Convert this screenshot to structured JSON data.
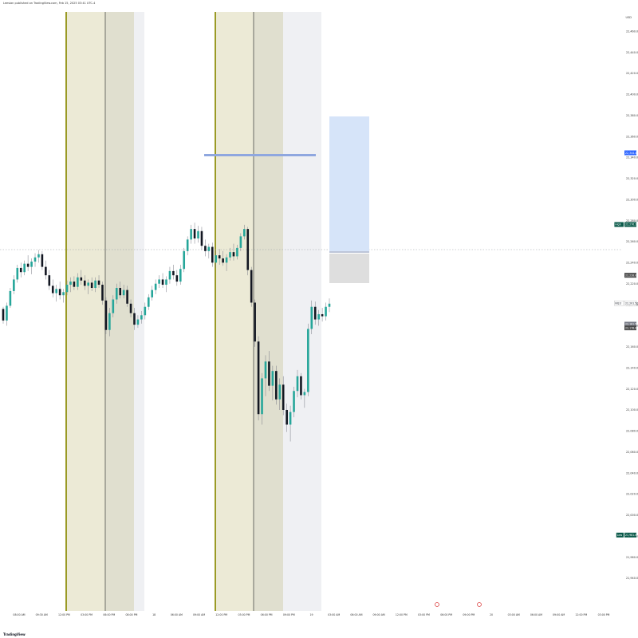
{
  "header": {
    "publisher": "Leesian published on TradingView.com, Feb 15, 2025 03:41 UTC-4"
  },
  "footer": {
    "brand": "TradingView"
  },
  "currency": "USD",
  "chart_data": {
    "type": "candlestick",
    "title": "",
    "ylim": [
      21940,
      22470
    ],
    "price_ticks": [
      22460,
      22440,
      22420,
      22400,
      22380,
      22360,
      22340,
      22320,
      22300,
      22280,
      22260,
      22240,
      22220,
      22200,
      22180,
      22160,
      22140,
      22120,
      22100,
      22080,
      22060,
      22040,
      22020,
      22000,
      21980,
      21960,
      21940
    ],
    "time_labels": [
      "08:00 AM",
      "09:30 AM",
      "12:00 PM",
      "03:00 PM",
      "06:00 PM",
      "08:00 PM",
      "18",
      "06:00 AM",
      "09:00 AM",
      "12:00 PM",
      "03:00 PM",
      "06:00 PM",
      "09:00 PM",
      "19",
      "03:00 AM",
      "06:00 AM",
      "09:00 AM",
      "12:00 PM",
      "03:00 PM",
      "06:00 PM",
      "09:00 PM",
      "20",
      "03:00 AM",
      "06:00 AM",
      "09:00 AM",
      "12:00 PM",
      "03:00 PM"
    ],
    "price_labels": [
      {
        "label": "",
        "value": "22,344.45",
        "color": "#2962ff"
      },
      {
        "label": "High",
        "value": "22,276.25",
        "color": "#0b5a4a"
      },
      {
        "label": "",
        "value": "22,228.00",
        "color": "#4a4a4a"
      },
      {
        "label": "NQ1!",
        "value": "22,201.50",
        "color": "#ffffff"
      },
      {
        "label": "",
        "value": "22,181.50",
        "color": "#787b86"
      },
      {
        "label": "",
        "value": "22,178.00",
        "color": "#4a4a4a"
      },
      {
        "label": "Low",
        "value": "21,981.00",
        "color": "#0b5a4a"
      }
    ],
    "candles": [
      [
        22196,
        22198,
        22182,
        22185
      ],
      [
        22185,
        22202,
        22180,
        22199
      ],
      [
        22199,
        22216,
        22197,
        22213
      ],
      [
        22213,
        22228,
        22210,
        22224
      ],
      [
        22224,
        22238,
        22221,
        22235
      ],
      [
        22235,
        22240,
        22226,
        22231
      ],
      [
        22231,
        22242,
        22228,
        22239
      ],
      [
        22239,
        22247,
        22232,
        22236
      ],
      [
        22236,
        22244,
        22229,
        22241
      ],
      [
        22241,
        22249,
        22236,
        22245
      ],
      [
        22245,
        22252,
        22240,
        22248
      ],
      [
        22248,
        22251,
        22233,
        22236
      ],
      [
        22236,
        22242,
        22224,
        22228
      ],
      [
        22228,
        22233,
        22214,
        22218
      ],
      [
        22218,
        22224,
        22207,
        22211
      ],
      [
        22211,
        22219,
        22203,
        22215
      ],
      [
        22215,
        22222,
        22205,
        22209
      ],
      [
        22209,
        22215,
        22202,
        22212
      ],
      [
        22212,
        22223,
        22209,
        22219
      ],
      [
        22219,
        22226,
        22212,
        22222
      ],
      [
        22222,
        22227,
        22214,
        22217
      ],
      [
        22217,
        22230,
        22214,
        22226
      ],
      [
        22226,
        22233,
        22219,
        22223
      ],
      [
        22223,
        22228,
        22214,
        22218
      ],
      [
        22218,
        22224,
        22210,
        22221
      ],
      [
        22221,
        22226,
        22213,
        22216
      ],
      [
        22216,
        22226,
        22212,
        22223
      ],
      [
        22223,
        22228,
        22216,
        22219
      ],
      [
        22219,
        22222,
        22200,
        22204
      ],
      [
        22204,
        22207,
        22172,
        22176
      ],
      [
        22176,
        22197,
        22170,
        22192
      ],
      [
        22192,
        22209,
        22188,
        22205
      ],
      [
        22205,
        22220,
        22201,
        22216
      ],
      [
        22216,
        22222,
        22206,
        22209
      ],
      [
        22209,
        22219,
        22206,
        22214
      ],
      [
        22214,
        22218,
        22198,
        22201
      ],
      [
        22201,
        22205,
        22188,
        22192
      ],
      [
        22192,
        22197,
        22176,
        22181
      ],
      [
        22181,
        22190,
        22178,
        22186
      ],
      [
        22186,
        22194,
        22182,
        22190
      ],
      [
        22190,
        22202,
        22186,
        22198
      ],
      [
        22198,
        22210,
        22195,
        22207
      ],
      [
        22207,
        22218,
        22204,
        22214
      ],
      [
        22214,
        22224,
        22210,
        22220
      ],
      [
        22220,
        22228,
        22216,
        22224
      ],
      [
        22224,
        22230,
        22216,
        22219
      ],
      [
        22219,
        22227,
        22212,
        22224
      ],
      [
        22224,
        22236,
        22220,
        22232
      ],
      [
        22232,
        22238,
        22224,
        22228
      ],
      [
        22228,
        22233,
        22218,
        22222
      ],
      [
        22222,
        22238,
        22219,
        22234
      ],
      [
        22234,
        22254,
        22231,
        22251
      ],
      [
        22251,
        22265,
        22247,
        22262
      ],
      [
        22262,
        22276,
        22258,
        22272
      ],
      [
        22272,
        22278,
        22258,
        22263
      ],
      [
        22263,
        22275,
        22259,
        22270
      ],
      [
        22270,
        22274,
        22252,
        22256
      ],
      [
        22256,
        22262,
        22246,
        22251
      ],
      [
        22251,
        22258,
        22244,
        22255
      ],
      [
        22255,
        22259,
        22236,
        22240
      ],
      [
        22240,
        22252,
        22235,
        22247
      ],
      [
        22247,
        22253,
        22238,
        22244
      ],
      [
        22244,
        22251,
        22237,
        22240
      ],
      [
        22240,
        22248,
        22232,
        22245
      ],
      [
        22245,
        22254,
        22242,
        22250
      ],
      [
        22250,
        22258,
        22242,
        22246
      ],
      [
        22246,
        22257,
        22243,
        22254
      ],
      [
        22254,
        22268,
        22251,
        22265
      ],
      [
        22265,
        22276,
        22262,
        22272
      ],
      [
        22272,
        22274,
        22228,
        22233
      ],
      [
        22233,
        22236,
        22198,
        22202
      ],
      [
        22202,
        22205,
        22160,
        22165
      ],
      [
        22165,
        22170,
        22090,
        22096
      ],
      [
        22096,
        22135,
        22086,
        22130
      ],
      [
        22130,
        22152,
        22113,
        22146
      ],
      [
        22146,
        22156,
        22118,
        22123
      ],
      [
        22123,
        22142,
        22109,
        22137
      ],
      [
        22137,
        22142,
        22105,
        22110
      ],
      [
        22110,
        22130,
        22100,
        22124
      ],
      [
        22124,
        22132,
        22095,
        22100
      ],
      [
        22100,
        22106,
        22079,
        22086
      ],
      [
        22086,
        22104,
        22070,
        22098
      ],
      [
        22098,
        22122,
        22093,
        22118
      ],
      [
        22118,
        22138,
        22112,
        22132
      ],
      [
        22132,
        22135,
        22110,
        22114
      ],
      [
        22114,
        22120,
        22102,
        22117
      ],
      [
        22117,
        22182,
        22113,
        22177
      ],
      [
        22177,
        22204,
        22172,
        22198
      ],
      [
        22198,
        22203,
        22181,
        22186
      ],
      [
        22186,
        22195,
        22180,
        22191
      ],
      [
        22191,
        22197,
        22184,
        22189
      ],
      [
        22189,
        22202,
        22185,
        22198
      ],
      [
        22198,
        22206,
        22193,
        22201
      ]
    ]
  }
}
